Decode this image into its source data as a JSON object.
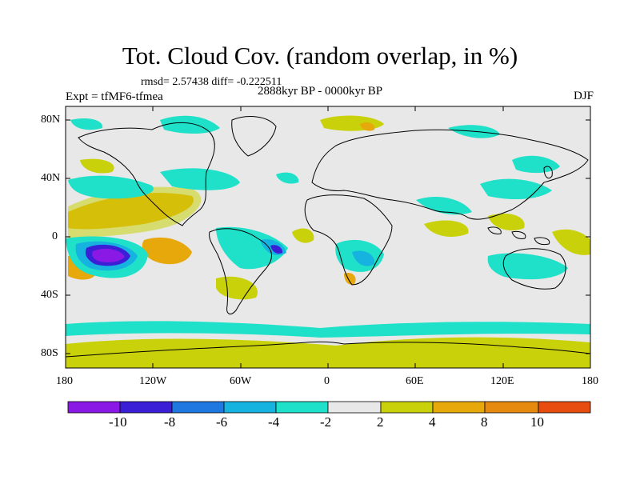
{
  "title": "Tot. Cloud Cov. (random overlap, in %)",
  "stats_line": "rmsd= 2.57438 diff= -0.222511",
  "experiment": "Expt = tfMF6-tfmea",
  "period": "2888kyr BP - 0000kyr BP",
  "season": "DJF",
  "y_axis": {
    "ticks": [
      "80N",
      "40N",
      "0",
      "40S",
      "80S"
    ]
  },
  "x_axis": {
    "ticks": [
      "180",
      "120W",
      "60W",
      "0",
      "60E",
      "120E",
      "180"
    ]
  },
  "colorbar": {
    "colors": [
      "#8a19e6",
      "#3b1fd6",
      "#1f78e0",
      "#16b3e0",
      "#1fe0c8",
      "#e8e8e8",
      "#c9d10a",
      "#e6a80a",
      "#e68a0f",
      "#e64d0f",
      "#e60f0f"
    ],
    "labels": [
      "-10",
      "-8",
      "-6",
      "-4",
      "-2",
      "2",
      "4",
      "8",
      "10"
    ]
  },
  "colors": {
    "land_sea_bg": "#e8e8e8",
    "coast": "#000000"
  }
}
